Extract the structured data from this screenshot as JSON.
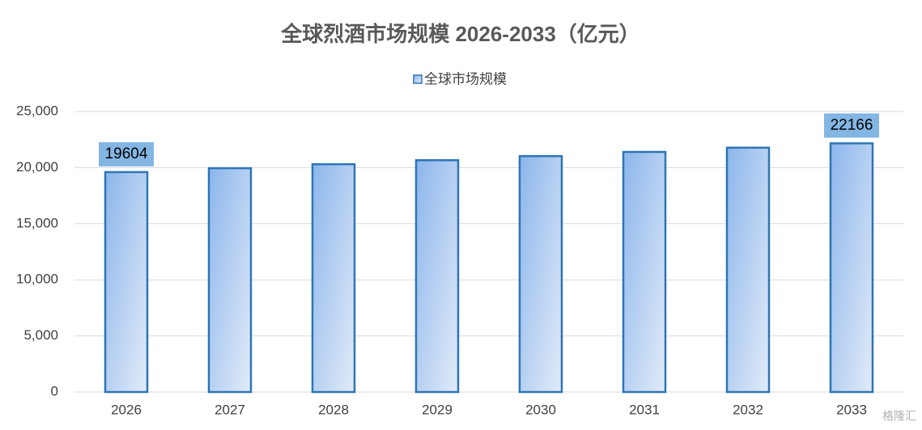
{
  "chart_data": {
    "type": "bar",
    "title": "全球烈酒市场规模 2026-2033（亿元）",
    "categories": [
      "2026",
      "2027",
      "2028",
      "2029",
      "2030",
      "2031",
      "2032",
      "2033"
    ],
    "series": [
      {
        "name": "全球市场规模",
        "color": "#2e75b6",
        "values": [
          19604,
          19951,
          20304,
          20663,
          21029,
          21401,
          21780,
          22166
        ],
        "value_labels": [
          "19604",
          null,
          null,
          null,
          null,
          null,
          null,
          "22166"
        ]
      }
    ],
    "ylim": [
      0,
      25000
    ],
    "yticks": [
      0,
      {
        "value": 5000,
        "label": "5,000"
      },
      {
        "value": 10000,
        "label": "10,000"
      },
      {
        "value": 15000,
        "label": "15,000"
      },
      {
        "value": 20000,
        "label": "20,000"
      },
      {
        "value": 25000,
        "label": "25,000"
      }
    ],
    "grid": true,
    "legend": "top",
    "watermark": "格隆汇"
  }
}
